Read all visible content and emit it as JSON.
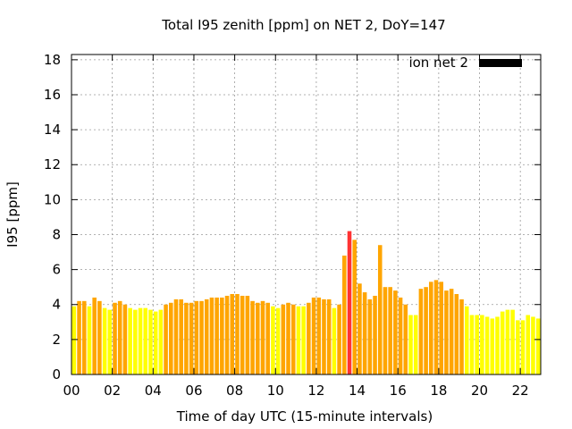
{
  "chart_data": {
    "type": "bar",
    "title": "Total I95 zenith [ppm] on NET 2, DoY=147",
    "xlabel": "Time of day UTC (15-minute intervals)",
    "ylabel": "I95 [ppm]",
    "ylim": [
      0,
      18.3
    ],
    "xlim": [
      0,
      23
    ],
    "yticks": [
      0,
      2,
      4,
      6,
      8,
      10,
      12,
      14,
      16,
      18
    ],
    "yticklabels": [
      "0",
      "2",
      "4",
      "6",
      "8",
      "10",
      "12",
      "14",
      "16",
      "18"
    ],
    "xticks": [
      0,
      2,
      4,
      6,
      8,
      10,
      12,
      14,
      16,
      18,
      20,
      22
    ],
    "xticklabels": [
      "00",
      "02",
      "04",
      "06",
      "08",
      "10",
      "12",
      "14",
      "16",
      "18",
      "20",
      "22"
    ],
    "grid": true,
    "legend": {
      "position": "top-right",
      "label": "ion net 2",
      "color": "#000000"
    },
    "colors": {
      "low": "#ffff00",
      "mid": "#ffa500",
      "high": "#ff3333"
    },
    "series": [
      {
        "x": [
          0.0,
          0.25,
          0.5,
          0.75,
          1.0,
          1.25,
          1.5,
          1.75,
          2.0,
          2.25,
          2.5,
          2.75,
          3.0,
          3.25,
          3.5,
          3.75,
          4.0,
          4.25,
          4.5,
          4.75,
          5.0,
          5.25,
          5.5,
          5.75,
          6.0,
          6.25,
          6.5,
          6.75,
          7.0,
          7.25,
          7.5,
          7.75,
          8.0,
          8.25,
          8.5,
          8.75,
          9.0,
          9.25,
          9.5,
          9.75,
          10.0,
          10.25,
          10.5,
          10.75,
          11.0,
          11.25,
          11.5,
          11.75,
          12.0,
          12.25,
          12.5,
          12.75,
          13.0,
          13.25,
          13.5,
          13.75,
          14.0,
          14.25,
          14.5,
          14.75,
          15.0,
          15.25,
          15.5,
          15.75,
          16.0,
          16.25,
          16.5,
          16.75,
          17.0,
          17.25,
          17.5,
          17.75,
          18.0,
          18.25,
          18.5,
          18.75,
          19.0,
          19.25,
          19.5,
          19.75,
          20.0,
          20.25,
          20.5,
          20.75,
          21.0,
          21.25,
          21.5,
          21.75,
          22.0,
          22.25,
          22.5,
          22.75
        ],
        "values": [
          3.9,
          4.2,
          4.2,
          3.9,
          4.4,
          4.2,
          3.8,
          3.7,
          4.1,
          4.2,
          4.0,
          3.8,
          3.7,
          3.8,
          3.8,
          3.7,
          3.6,
          3.7,
          4.0,
          4.1,
          4.3,
          4.3,
          4.1,
          4.1,
          4.2,
          4.2,
          4.3,
          4.4,
          4.4,
          4.4,
          4.5,
          4.6,
          4.6,
          4.5,
          4.5,
          4.2,
          4.1,
          4.2,
          4.1,
          3.9,
          3.8,
          4.0,
          4.1,
          4.0,
          3.9,
          3.9,
          4.1,
          4.4,
          4.4,
          4.3,
          4.3,
          3.8,
          4.0,
          6.8,
          8.2,
          7.7,
          5.2,
          4.7,
          4.3,
          4.5,
          7.4,
          5.0,
          5.0,
          4.8,
          4.4,
          4.0,
          3.4,
          3.4,
          4.9,
          5.0,
          5.3,
          5.4,
          5.3,
          4.8,
          4.9,
          4.6,
          4.3,
          3.9,
          3.4,
          3.4,
          3.4,
          3.3,
          3.2,
          3.3,
          3.6,
          3.7,
          3.7,
          3.1,
          3.1,
          3.4,
          3.3,
          3.2
        ]
      }
    ]
  }
}
